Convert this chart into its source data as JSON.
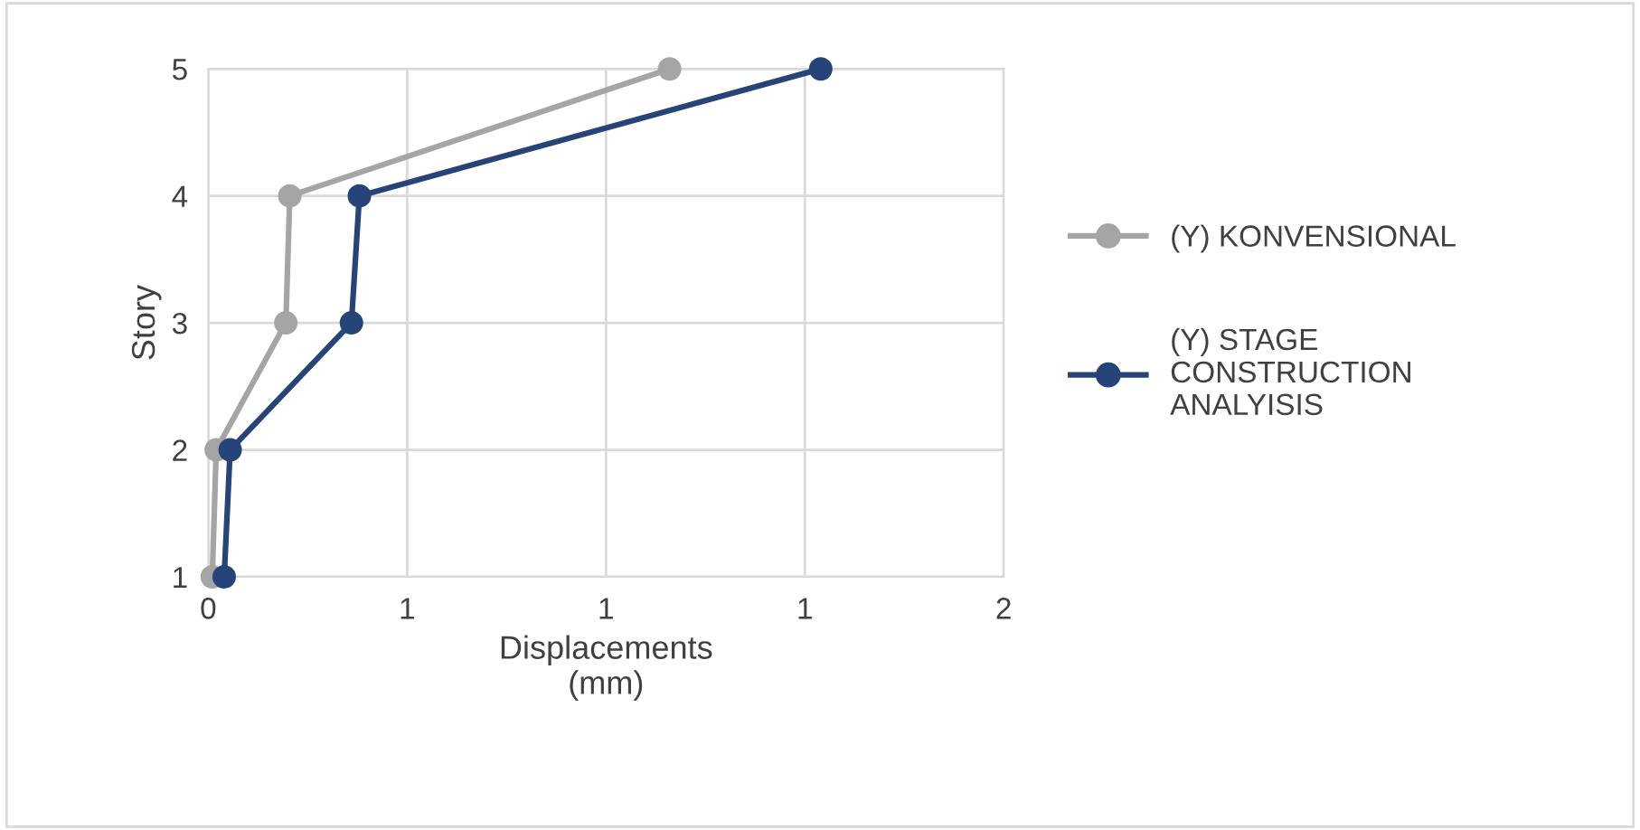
{
  "chart_data": {
    "type": "line",
    "xlabel": "Displacements\n(mm)",
    "ylabel": "Story",
    "xlim": [
      0,
      2
    ],
    "xticks": [
      0,
      {
        "value": 0.5,
        "label": "1"
      },
      1,
      {
        "value": 1.5,
        "label": "1"
      },
      2
    ],
    "ylim": [
      1,
      5
    ],
    "yticks": [
      1,
      2,
      3,
      4,
      5
    ],
    "grid": true,
    "legend": "right",
    "marker": "circle",
    "series": [
      {
        "name": "(Y) KONVENSIONAL",
        "color": "#a5a5a5",
        "x": [
          0.01,
          0.02,
          0.195,
          0.205,
          1.16
        ],
        "values": [
          1,
          2,
          3,
          4,
          5
        ]
      },
      {
        "name": "(Y) STAGE\nCONSTRUCTION\nANALYISIS",
        "color": "#264478",
        "x": [
          0.04,
          0.055,
          0.36,
          0.38,
          1.54
        ],
        "values": [
          1,
          2,
          3,
          4,
          5
        ]
      }
    ]
  }
}
